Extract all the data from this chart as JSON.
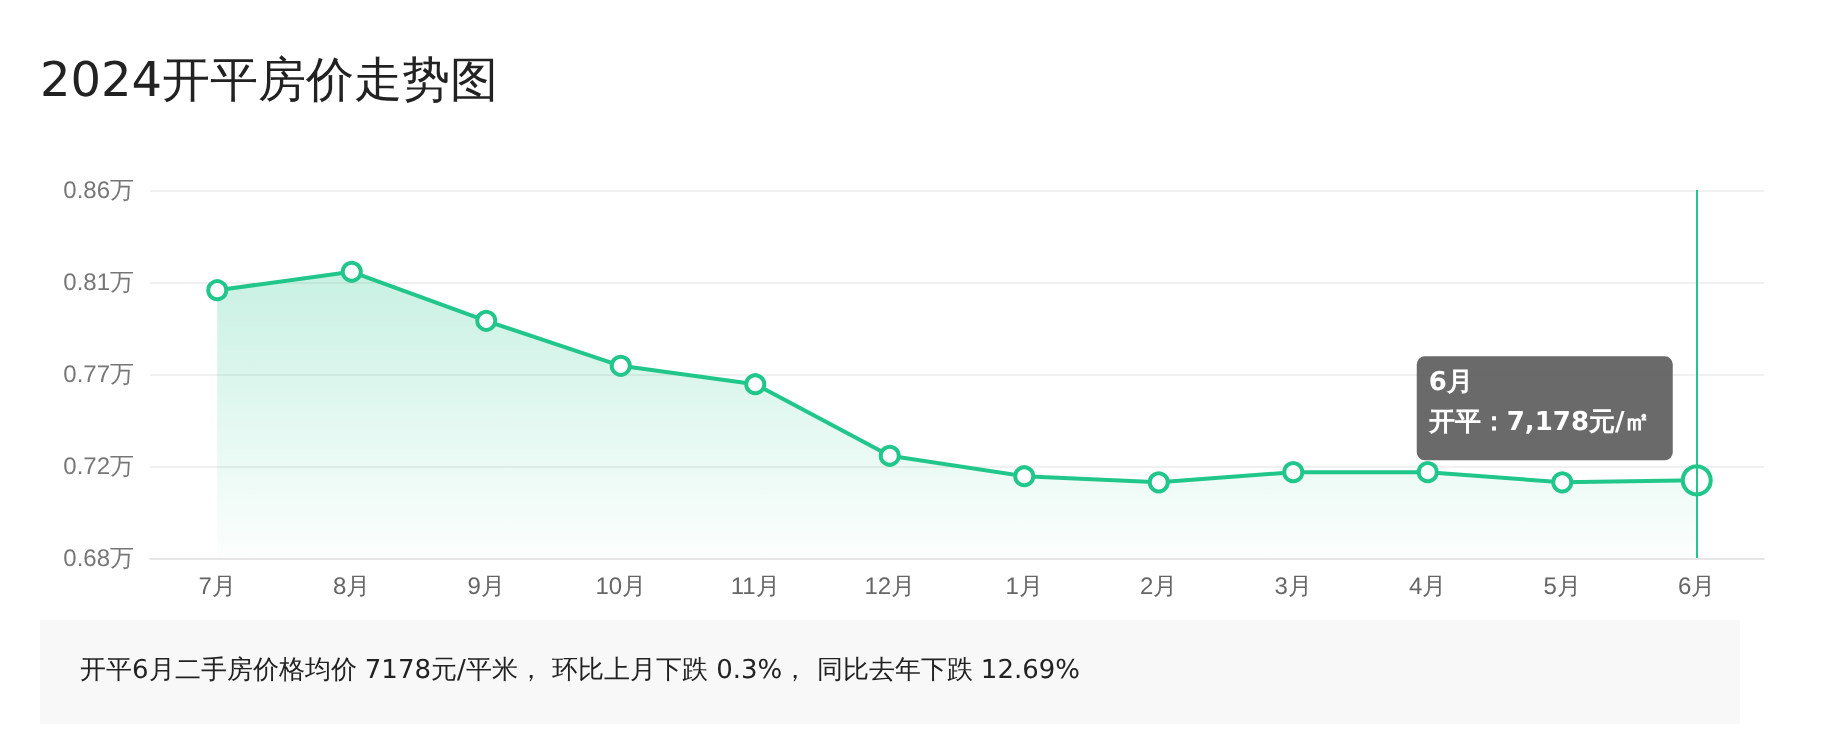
{
  "chart_data": {
    "type": "area",
    "title": "2024开平房价走势图",
    "categories": [
      "7月",
      "8月",
      "9月",
      "10月",
      "11月",
      "12月",
      "1月",
      "2月",
      "3月",
      "4月",
      "5月",
      "6月"
    ],
    "series": [
      {
        "color": "#21c68b",
        "values": [
          0.811,
          0.82,
          0.796,
          0.774,
          0.765,
          0.73,
          0.72,
          0.717,
          0.722,
          0.722,
          0.717,
          0.718
        ]
      }
    ],
    "ylim": [
      0.68,
      0.86
    ],
    "yticks": [
      {
        "value": 0.68,
        "label": "0.68万"
      },
      {
        "value": 0.725,
        "label": "0.72万"
      },
      {
        "value": 0.77,
        "label": "0.77万"
      },
      {
        "value": 0.815,
        "label": "0.81万"
      },
      {
        "value": 0.86,
        "label": "0.86万"
      }
    ],
    "grid": "y",
    "marker": "circle",
    "ref_lines": [
      {
        "axis": "x",
        "value": "6月",
        "color": "#21c68b"
      }
    ],
    "annotations": [
      "6月",
      "开平：7,178元/㎡",
      "开平6月二手房价格均价 7178元/平米， 环比上月下跌 0.3%， 同比去年下跌 12.69%"
    ]
  }
}
